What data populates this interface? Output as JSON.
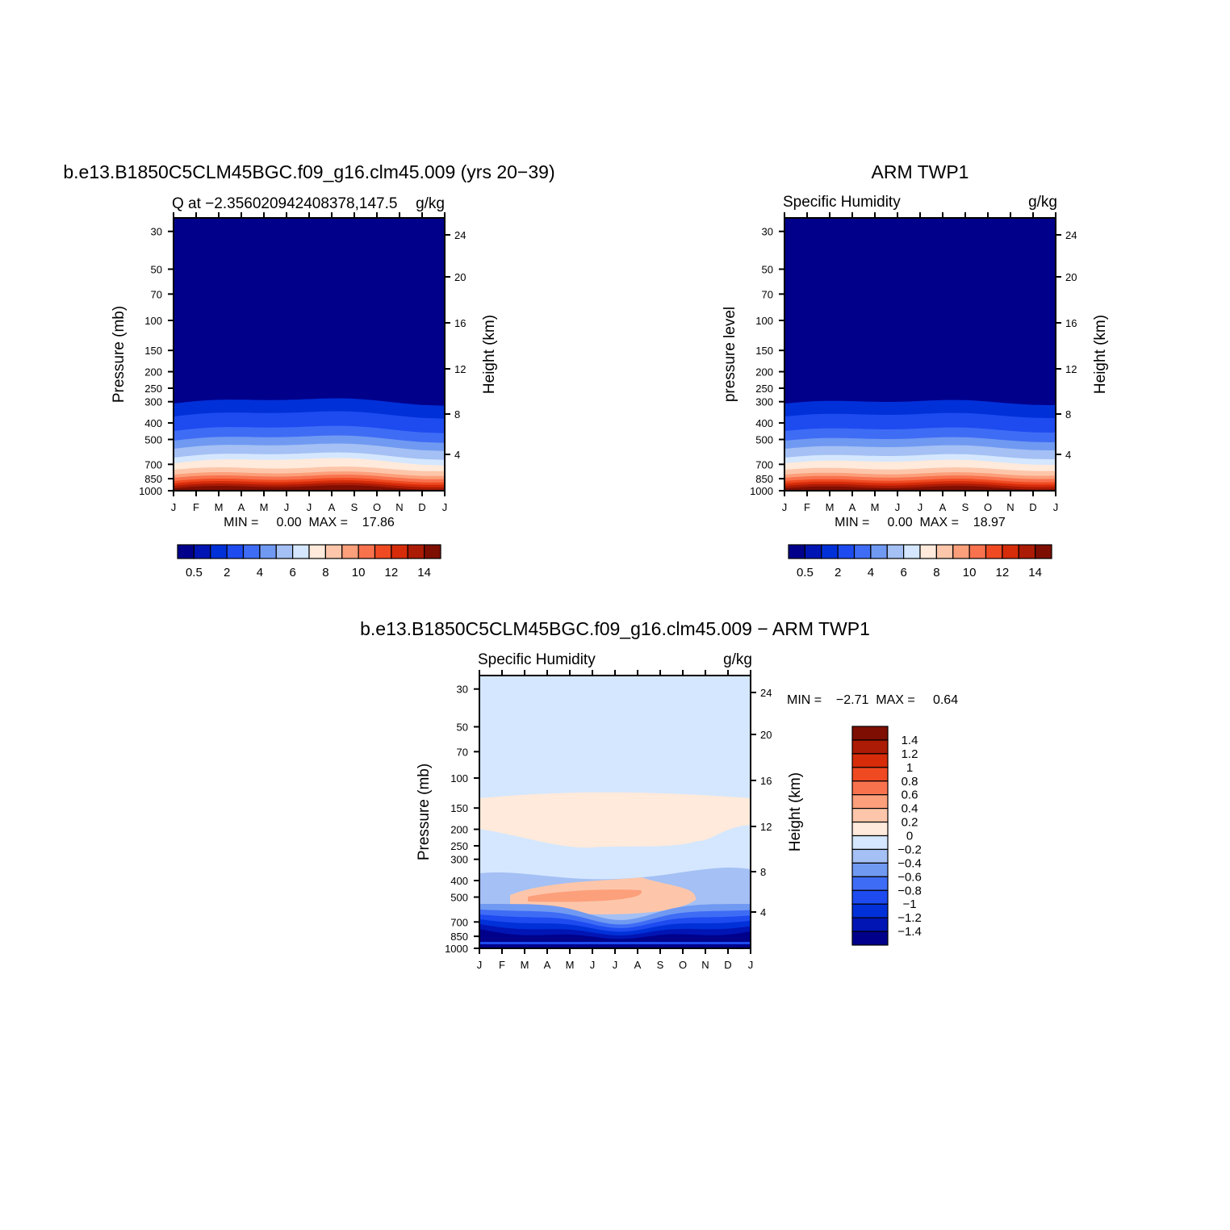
{
  "chart_data": [
    {
      "type": "heatmap",
      "title": "b.e13.B1850C5CLM45BGC.f09_g16.clm45.009 (yrs 20−39)",
      "subtitle_left": "Q at −2.356020942408378,147.5",
      "subtitle_right": "g/kg",
      "ylabel": "Pressure (mb)",
      "ylabel_right": "Height (km)",
      "x_ticks": [
        "J",
        "F",
        "M",
        "A",
        "M",
        "J",
        "J",
        "A",
        "S",
        "O",
        "N",
        "D",
        "J"
      ],
      "y_ticks": [
        "30",
        "50",
        "70",
        "100",
        "150",
        "200",
        "250",
        "300",
        "400",
        "500",
        "700",
        "850",
        "1000"
      ],
      "y_ticks_right": [
        "24",
        "20",
        "16",
        "12",
        "8",
        "4"
      ],
      "stats": "MIN =     0.00  MAX =    17.86",
      "min": 0.0,
      "max": 17.86,
      "levels": [
        0.5,
        1,
        2,
        3,
        4,
        5,
        6,
        7,
        8,
        9,
        10,
        11,
        12,
        13,
        14
      ],
      "colorbar_labels": [
        "0.5",
        "2",
        "4",
        "6",
        "8",
        "10",
        "12",
        "14"
      ],
      "colorbar_orientation": "horizontal",
      "colors": [
        "#00008b",
        "#0015b4",
        "#0030d8",
        "#1d4bf0",
        "#3f6cf5",
        "#7099f2",
        "#a4c0f4",
        "#d4e7ff",
        "#ffeadb",
        "#fdc6aa",
        "#fc9f7b",
        "#f8724d",
        "#ef4a22",
        "#d62c0a",
        "#ab1b05",
        "#7e0e02"
      ]
    },
    {
      "type": "heatmap",
      "title": "ARM TWP1",
      "subtitle_left": "Specific Humidity",
      "subtitle_right": "g/kg",
      "ylabel": "pressure level",
      "ylabel_right": "Height (km)",
      "x_ticks": [
        "J",
        "F",
        "M",
        "A",
        "M",
        "J",
        "J",
        "A",
        "S",
        "O",
        "N",
        "D",
        "J"
      ],
      "y_ticks": [
        "30",
        "50",
        "70",
        "100",
        "150",
        "200",
        "250",
        "300",
        "400",
        "500",
        "700",
        "850",
        "1000"
      ],
      "y_ticks_right": [
        "24",
        "20",
        "16",
        "12",
        "8",
        "4"
      ],
      "stats": "MIN =     0.00  MAX =    18.97",
      "min": 0.0,
      "max": 18.97,
      "levels": [
        0.5,
        1,
        2,
        3,
        4,
        5,
        6,
        7,
        8,
        9,
        10,
        11,
        12,
        13,
        14
      ],
      "colorbar_labels": [
        "0.5",
        "2",
        "4",
        "6",
        "8",
        "10",
        "12",
        "14"
      ],
      "colorbar_orientation": "horizontal",
      "colors": [
        "#00008b",
        "#0015b4",
        "#0030d8",
        "#1d4bf0",
        "#3f6cf5",
        "#7099f2",
        "#a4c0f4",
        "#d4e7ff",
        "#ffeadb",
        "#fdc6aa",
        "#fc9f7b",
        "#f8724d",
        "#ef4a22",
        "#d62c0a",
        "#ab1b05",
        "#7e0e02"
      ]
    },
    {
      "type": "heatmap",
      "title": "b.e13.B1850C5CLM45BGC.f09_g16.clm45.009 − ARM TWP1",
      "subtitle_left": "Specific Humidity",
      "subtitle_right": "g/kg",
      "ylabel": "Pressure (mb)",
      "ylabel_right": "Height (km)",
      "x_ticks": [
        "J",
        "F",
        "M",
        "A",
        "M",
        "J",
        "J",
        "A",
        "S",
        "O",
        "N",
        "D",
        "J"
      ],
      "y_ticks": [
        "30",
        "50",
        "70",
        "100",
        "150",
        "200",
        "250",
        "300",
        "400",
        "500",
        "700",
        "850",
        "1000"
      ],
      "y_ticks_right": [
        "24",
        "20",
        "16",
        "12",
        "8",
        "4"
      ],
      "stats": "MIN =    −2.71  MAX =     0.64",
      "min": -2.71,
      "max": 0.64,
      "levels": [
        -1.4,
        -1.2,
        -1,
        -0.8,
        -0.6,
        -0.4,
        -0.2,
        0,
        0.2,
        0.4,
        0.6,
        0.8,
        1,
        1.2,
        1.4
      ],
      "colorbar_labels": [
        "1.4",
        "1.2",
        "1",
        "0.8",
        "0.6",
        "0.4",
        "0.2",
        "0",
        "−0.2",
        "−0.4",
        "−0.6",
        "−0.8",
        "−1",
        "−1.2",
        "−1.4"
      ],
      "colorbar_orientation": "vertical",
      "colors": [
        "#00008b",
        "#0015b4",
        "#0030d8",
        "#1d4bf0",
        "#3f6cf5",
        "#7099f2",
        "#a4c0f4",
        "#d4e7ff",
        "#ffeadb",
        "#fdc6aa",
        "#fc9f7b",
        "#f8724d",
        "#ef4a22",
        "#d62c0a",
        "#ab1b05",
        "#7e0e02"
      ]
    }
  ]
}
